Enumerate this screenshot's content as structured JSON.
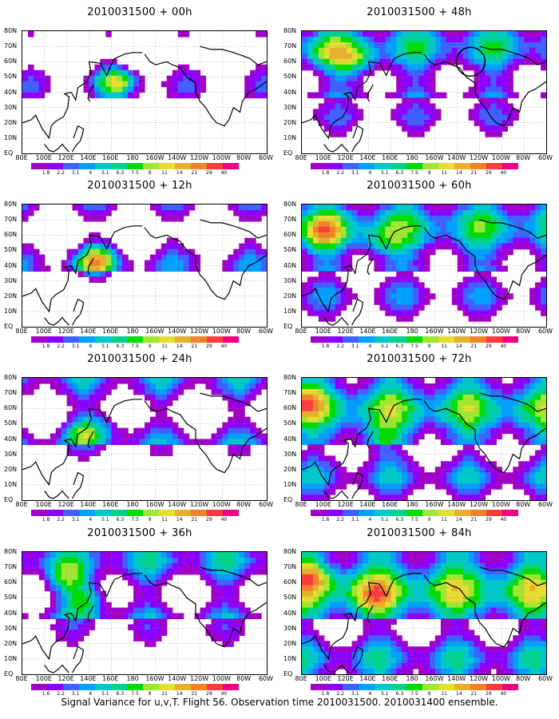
{
  "panels": [
    {
      "title": "2010031500 + 00h",
      "intensity": 0.1,
      "hotspots": [
        [
          165,
          48,
          3
        ],
        [
          170,
          45,
          2
        ]
      ]
    },
    {
      "title": "2010031500 + 12h",
      "intensity": 0.25,
      "hotspots": [
        [
          145,
          42,
          3
        ],
        [
          150,
          45,
          2
        ]
      ]
    },
    {
      "title": "2010031500 + 24h",
      "intensity": 0.35,
      "hotspots": [
        [
          135,
          45,
          3
        ],
        [
          160,
          50,
          2
        ]
      ]
    },
    {
      "title": "2010031500 + 36h",
      "intensity": 0.45,
      "hotspots": [
        [
          140,
          48,
          4
        ],
        [
          120,
          62,
          3
        ]
      ]
    },
    {
      "title": "2010031500 + 48h",
      "intensity": 0.55,
      "hotspots": [
        [
          130,
          60,
          3
        ],
        [
          100,
          65,
          2
        ]
      ]
    },
    {
      "title": "2010031500 + 60h",
      "intensity": 0.65,
      "hotspots": [
        [
          100,
          62,
          3
        ],
        [
          150,
          55,
          2
        ]
      ]
    },
    {
      "title": "2010031500 + 72h",
      "intensity": 0.75,
      "hotspots": [
        [
          80,
          65,
          3
        ],
        [
          150,
          40,
          2
        ]
      ]
    },
    {
      "title": "2010031500 + 84h",
      "intensity": 0.85,
      "hotspots": [
        [
          90,
          65,
          3
        ],
        [
          145,
          50,
          2
        ]
      ]
    }
  ],
  "lat_labels": [
    "80N",
    "70N",
    "60N",
    "50N",
    "40N",
    "30N",
    "20N",
    "10N",
    "EQ"
  ],
  "lon_labels": [
    "80E",
    "100E",
    "120E",
    "140E",
    "160E",
    "180",
    "160W",
    "140W",
    "120W",
    "100W",
    "80W",
    "60W"
  ],
  "colorbar": {
    "labels": [
      "1.8",
      "2.2",
      "3.1",
      "4",
      "5.1",
      "6.3",
      "7.5",
      "9",
      "11",
      "14",
      "21",
      "29",
      "40"
    ],
    "labels_row4": [
      "1.6",
      "2.2",
      "3.1",
      "4",
      "5.1",
      "6.3",
      "7.5",
      "9",
      "11",
      "14",
      "21",
      "29",
      "40"
    ],
    "colors": [
      "#a000c8",
      "#8c00ff",
      "#4060ff",
      "#00a0ff",
      "#00c8c8",
      "#00d28c",
      "#00dc00",
      "#a0e632",
      "#e6dc32",
      "#e6af2d",
      "#f08228",
      "#fa3c3c",
      "#f00082"
    ]
  },
  "footer": "Signal Variance for u,v,T. Flight 56. Observation time 2010031500. 2010031400 ensemble."
}
